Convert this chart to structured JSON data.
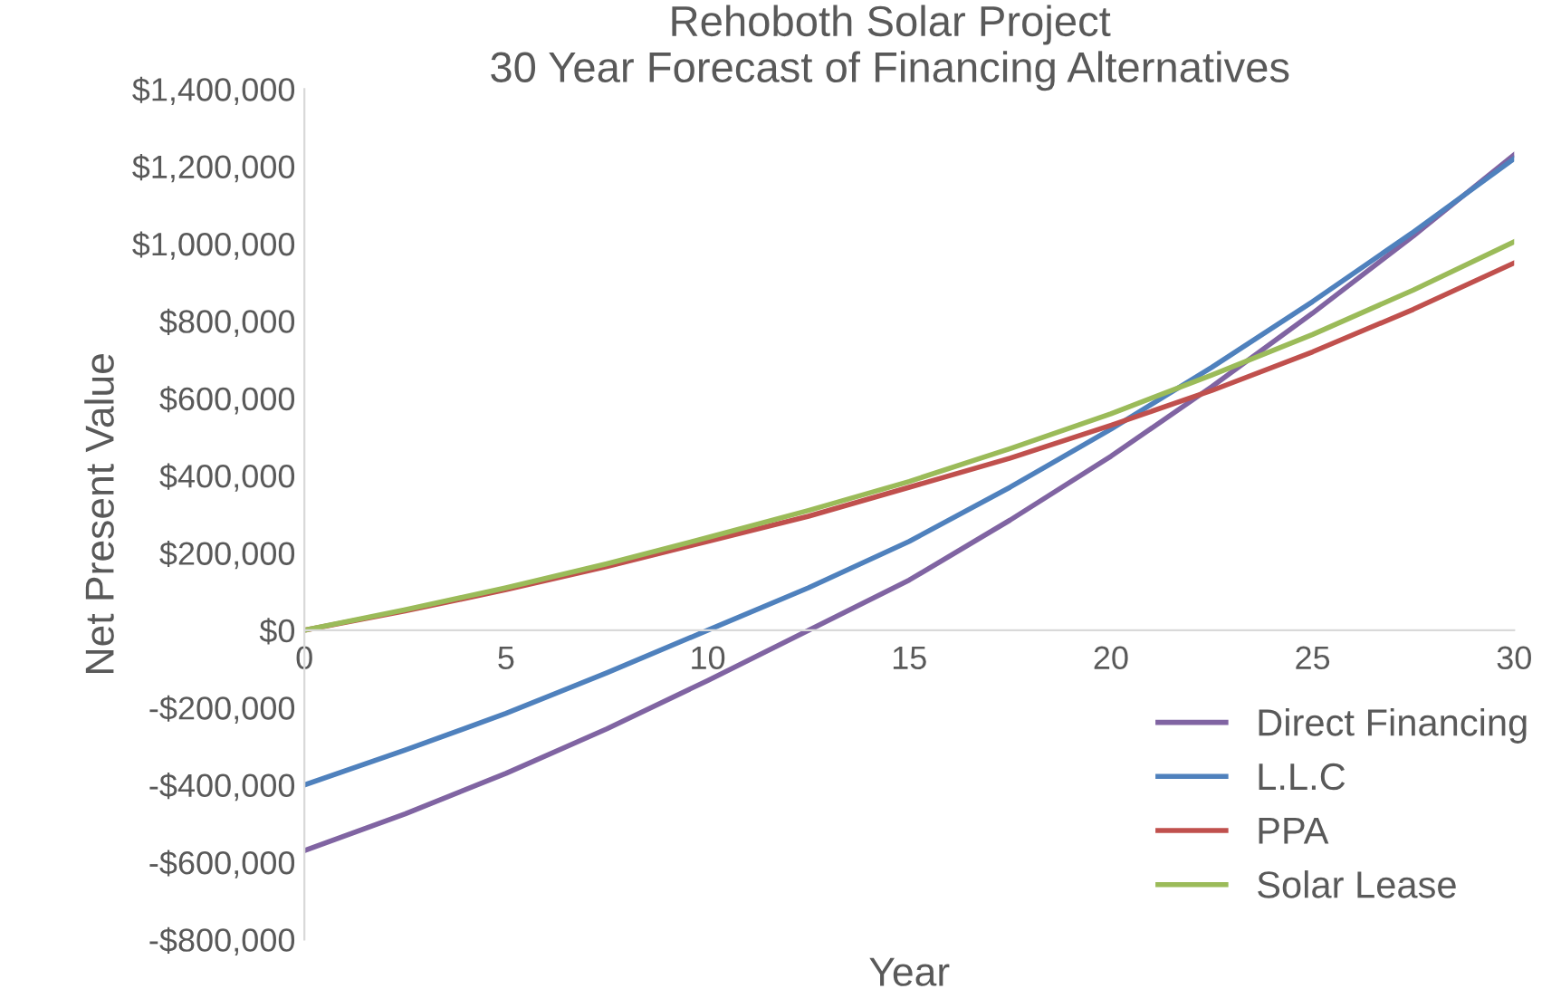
{
  "chart_data": {
    "type": "line",
    "title": "Rehoboth Solar Project",
    "subtitle": "30 Year Forecast of Financing Alternatives",
    "xlabel": "Year",
    "ylabel": "Net Present Value",
    "x": [
      0,
      2.5,
      5,
      7.5,
      10,
      12.5,
      15,
      17.5,
      20,
      22.5,
      25,
      27.5,
      30
    ],
    "series": [
      {
        "name": "Direct Financing",
        "color": "#8064a2",
        "values": [
          -570000,
          -475000,
          -370000,
          -255000,
          -130000,
          0,
          130000,
          285000,
          450000,
          630000,
          820000,
          1020000,
          1230000
        ]
      },
      {
        "name": "L.L.C",
        "color": "#4f81bd",
        "values": [
          -400000,
          -310000,
          -215000,
          -110000,
          0,
          110000,
          230000,
          370000,
          520000,
          680000,
          850000,
          1030000,
          1220000
        ]
      },
      {
        "name": "PPA",
        "color": "#c0504d",
        "values": [
          0,
          50000,
          105000,
          165000,
          230000,
          295000,
          370000,
          445000,
          530000,
          620000,
          720000,
          830000,
          950000
        ]
      },
      {
        "name": "Solar Lease",
        "color": "#9bbb59",
        "values": [
          0,
          53000,
          110000,
          172000,
          240000,
          310000,
          385000,
          470000,
          560000,
          660000,
          765000,
          880000,
          1005000
        ]
      }
    ],
    "xlim": [
      0,
      30
    ],
    "xticks": [
      0,
      5,
      10,
      15,
      20,
      25,
      30
    ],
    "ylim": [
      -800000,
      1400000
    ],
    "yticks": [
      {
        "value": -800000,
        "label": "-$800,000"
      },
      {
        "value": -600000,
        "label": "-$600,000"
      },
      {
        "value": -400000,
        "label": "-$400,000"
      },
      {
        "value": -200000,
        "label": "-$200,000"
      },
      {
        "value": 0,
        "label": "$0"
      },
      {
        "value": 200000,
        "label": "$200,000"
      },
      {
        "value": 400000,
        "label": "$400,000"
      },
      {
        "value": 600000,
        "label": "$600,000"
      },
      {
        "value": 800000,
        "label": "$800,000"
      },
      {
        "value": 1000000,
        "label": "$1,000,000"
      },
      {
        "value": 1200000,
        "label": "$1,200,000"
      },
      {
        "value": 1400000,
        "label": "$1,400,000"
      }
    ],
    "grid": false,
    "legend": "bottom right",
    "marker": "none",
    "line_style": "solid"
  }
}
